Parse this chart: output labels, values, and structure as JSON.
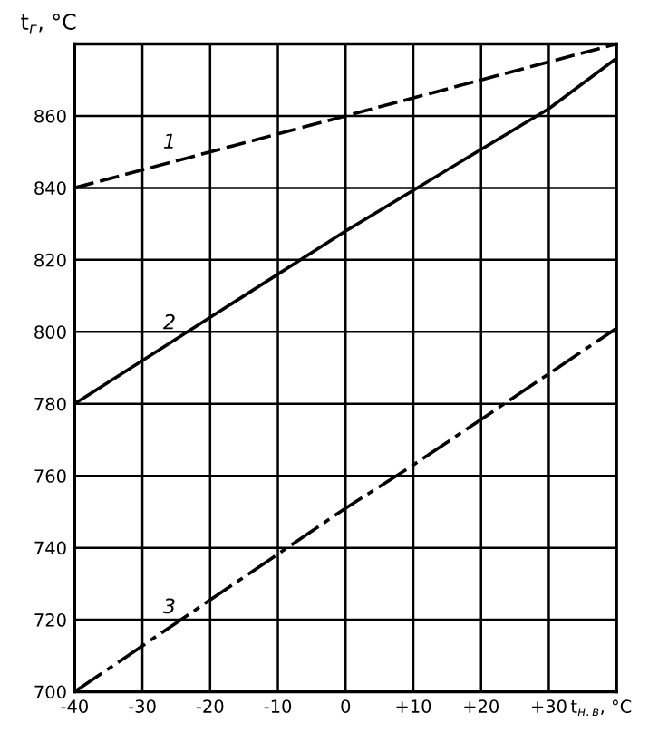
{
  "chart_data": {
    "type": "line",
    "ylabel": "t$_{г}$, °C",
    "xlabel": "t$_{н.в}$, °C",
    "xlim": [
      -40,
      40
    ],
    "ylim": [
      700,
      880
    ],
    "xticks": [
      -40,
      -30,
      -20,
      -10,
      0,
      {
        "value": 10,
        "label": "+10"
      },
      {
        "value": 20,
        "label": "+20"
      },
      {
        "value": 30,
        "label": "+30"
      },
      {
        "value": 40,
        "label": null
      }
    ],
    "yticks": [
      700,
      720,
      740,
      760,
      780,
      800,
      820,
      840,
      860,
      {
        "value": 880,
        "label": null
      }
    ],
    "grid": true,
    "legend": false,
    "marker": "none",
    "series": [
      {
        "name": "1",
        "color": "#000000",
        "line_style": "dashed",
        "x": [
          -40,
          0,
          40
        ],
        "values": [
          840,
          860,
          880
        ]
      },
      {
        "name": "2",
        "color": "#000000",
        "line_style": "solid",
        "x": [
          -40,
          0,
          30,
          40
        ],
        "values": [
          780,
          828,
          862,
          876
        ]
      },
      {
        "name": "3",
        "color": "#000000",
        "line_style": "dashdot",
        "x": [
          -40,
          0,
          10,
          40
        ],
        "values": [
          700,
          751,
          763,
          801
        ]
      }
    ]
  }
}
